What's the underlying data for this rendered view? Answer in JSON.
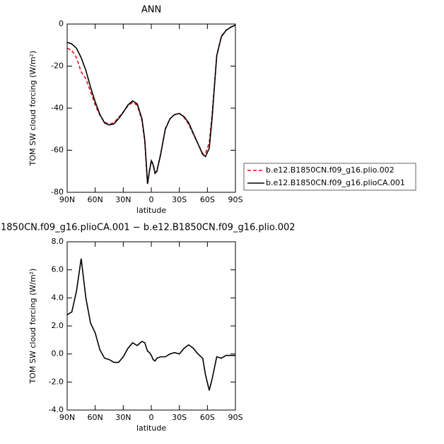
{
  "chart_data": [
    {
      "type": "line",
      "title": "ANN",
      "xlabel": "latitude",
      "ylabel": "TOM SW cloud forcing (W/m²)",
      "x": [
        90,
        85,
        80,
        75,
        70,
        65,
        60,
        55,
        50,
        45,
        40,
        35,
        30,
        25,
        20,
        15,
        10,
        7,
        4,
        2,
        0,
        -2,
        -4,
        -6,
        -10,
        -15,
        -20,
        -25,
        -30,
        -35,
        -40,
        -45,
        -50,
        -55,
        -58,
        -62,
        -65,
        -70,
        -75,
        -80,
        -85,
        -90
      ],
      "xlim": [
        90,
        -90
      ],
      "xticks": [
        {
          "value": 90,
          "label": "90N"
        },
        {
          "value": 60,
          "label": "60N"
        },
        {
          "value": 30,
          "label": "30N"
        },
        0,
        {
          "value": -30,
          "label": "30S"
        },
        {
          "value": -60,
          "label": "60S"
        },
        {
          "value": -90,
          "label": "90S"
        }
      ],
      "ylim": [
        -80,
        0
      ],
      "yticks": [
        -80,
        -60,
        -40,
        -20,
        0
      ],
      "series": [
        {
          "name": "b.e12.B1850CN.f09_g16.plio.002",
          "color": "#e8101c",
          "dash": true,
          "values": [
            -11.5,
            -12.5,
            -16,
            -22.8,
            -26,
            -32.2,
            -38.5,
            -43.3,
            -46.7,
            -47.6,
            -46.9,
            -44.4,
            -41.8,
            -38.9,
            -37.3,
            -38.6,
            -45.9,
            -55.8,
            -76.2,
            -70.1,
            -64.9,
            -66.6,
            -70.5,
            -69.7,
            -61.8,
            -49.8,
            -45,
            -43.1,
            -42.5,
            -44.4,
            -47.65,
            -52.4,
            -57,
            -61.7,
            -61.5,
            -56.4,
            -43.2,
            -14.8,
            -5.7,
            -2.9,
            -1.4,
            -0.4
          ]
        },
        {
          "name": "b.e12.B1850CN.f09_g16.plioCA.001",
          "color": "#000000",
          "dash": false,
          "values": [
            -8.7,
            -9.5,
            -11.5,
            -16,
            -22,
            -30,
            -37,
            -43,
            -47,
            -48,
            -47.5,
            -45,
            -42,
            -38.5,
            -36.5,
            -38,
            -45,
            -55,
            -76,
            -70,
            -65,
            -67,
            -71,
            -70,
            -62,
            -50,
            -45,
            -43,
            -42.5,
            -44,
            -47,
            -52,
            -57,
            -62,
            -63,
            -59,
            -45,
            -15,
            -6,
            -3,
            -1.5,
            -0.5
          ]
        }
      ]
    },
    {
      "type": "line",
      "title": "1850CN.f09_g16.plioCA.001 − b.e12.B1850CN.f09_g16.plio.002",
      "xlabel": "latitude",
      "ylabel": "TOM SW cloud forcing (W/m²)",
      "x": [
        90,
        85,
        80,
        75,
        70,
        65,
        60,
        55,
        50,
        45,
        40,
        35,
        30,
        25,
        20,
        15,
        10,
        7,
        4,
        2,
        0,
        -2,
        -4,
        -6,
        -10,
        -15,
        -20,
        -25,
        -30,
        -35,
        -40,
        -45,
        -50,
        -55,
        -58,
        -62,
        -65,
        -70,
        -75,
        -80,
        -85,
        -90
      ],
      "xlim": [
        90,
        -90
      ],
      "xticks": [
        {
          "value": 90,
          "label": "90N"
        },
        {
          "value": 60,
          "label": "60N"
        },
        {
          "value": 30,
          "label": "30N"
        },
        0,
        {
          "value": -30,
          "label": "30S"
        },
        {
          "value": -60,
          "label": "60S"
        },
        {
          "value": -90,
          "label": "90S"
        }
      ],
      "ylim": [
        -4,
        8
      ],
      "yticks": [
        {
          "value": -4,
          "label": "-4.0"
        },
        {
          "value": -2,
          "label": "-2.0"
        },
        {
          "value": 0,
          "label": "0.0"
        },
        {
          "value": 2,
          "label": "2.0"
        },
        {
          "value": 4,
          "label": "4.0"
        },
        {
          "value": 6,
          "label": "6.0"
        },
        {
          "value": 8,
          "label": "8.0"
        }
      ],
      "series": [
        {
          "color": "#000000",
          "dash": false,
          "values": [
            2.8,
            3.0,
            4.5,
            6.8,
            4.0,
            2.2,
            1.5,
            0.3,
            -0.3,
            -0.4,
            -0.6,
            -0.6,
            -0.2,
            0.4,
            0.8,
            0.6,
            0.9,
            0.8,
            0.2,
            0.1,
            -0.1,
            -0.4,
            -0.5,
            -0.3,
            -0.2,
            -0.2,
            0,
            0.1,
            0,
            0.4,
            0.65,
            0.4,
            0,
            -0.3,
            -1.5,
            -2.6,
            -1.8,
            -0.2,
            -0.3,
            -0.1,
            -0.1,
            -0.1
          ]
        }
      ]
    }
  ]
}
